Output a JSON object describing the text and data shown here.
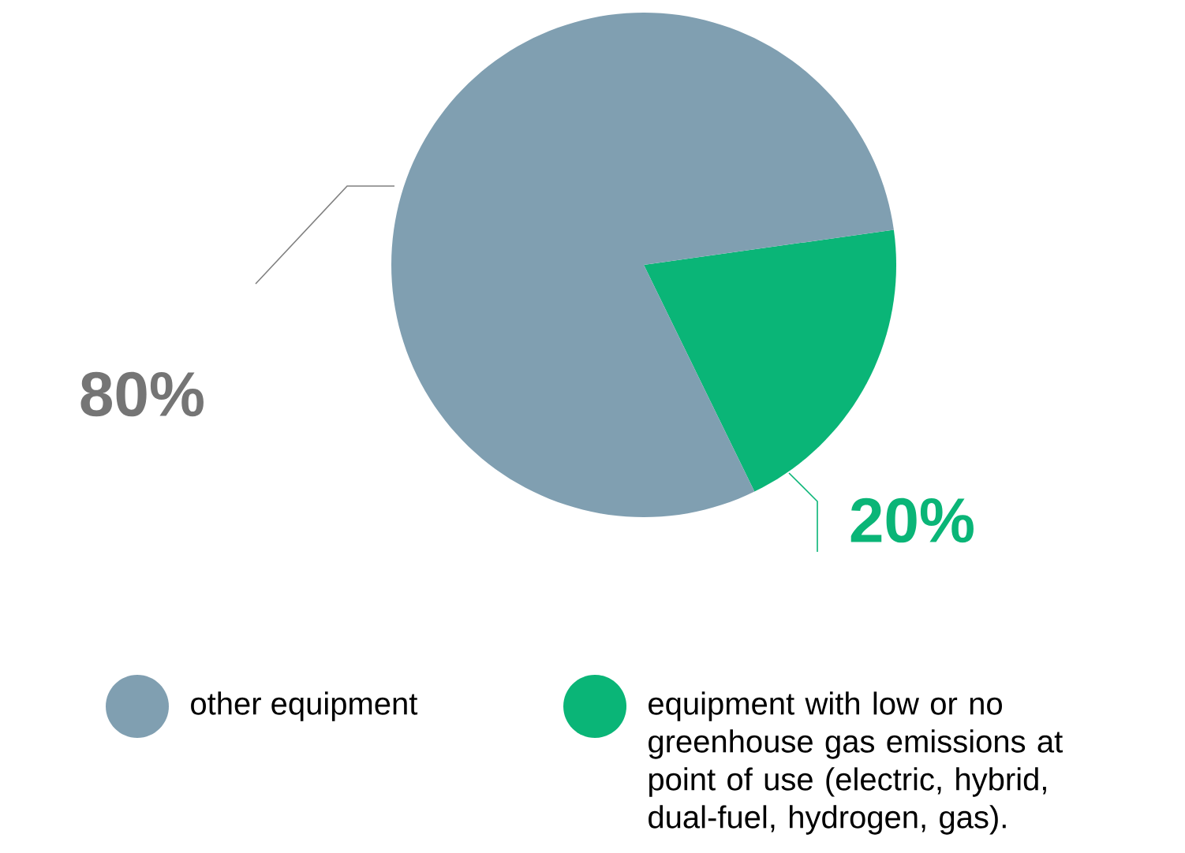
{
  "chart_data": {
    "type": "pie",
    "categories": [
      "other equipment",
      "equipment with low or no greenhouse gas emissions at point of use (electric, hybrid, dual-fuel, hydrogen, gas)."
    ],
    "values": [
      80,
      20
    ],
    "colors": [
      "#809fb1",
      "#0ab577"
    ],
    "value_labels": [
      "80%",
      "20%"
    ],
    "legend": "bottom"
  }
}
